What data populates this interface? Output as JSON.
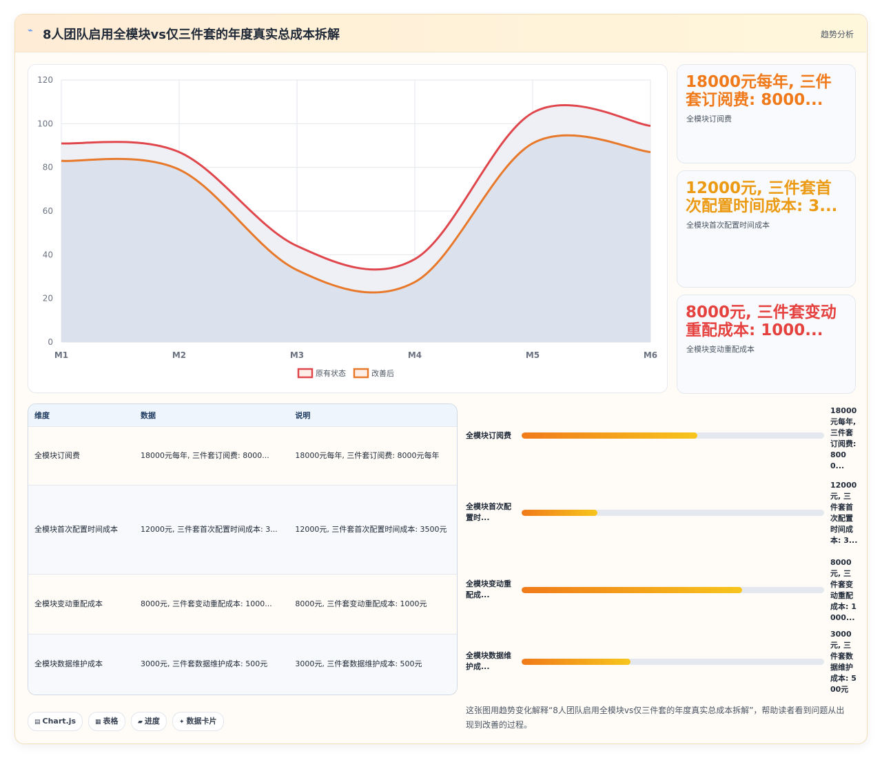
{
  "header": {
    "title": "8人团队启用全模块vs仅三件套的年度真实总成本拆解",
    "tag": "趋势分析"
  },
  "chart_data": {
    "type": "line",
    "categories": [
      "M1",
      "M2",
      "M3",
      "M4",
      "M5",
      "M6"
    ],
    "series": [
      {
        "name": "原有状态",
        "color": "#e0474c",
        "values": [
          91,
          87,
          44,
          38,
          105,
          99
        ]
      },
      {
        "name": "改善后",
        "color": "#e8782a",
        "values": [
          83,
          79,
          33,
          27.5,
          91,
          87
        ]
      }
    ],
    "ylim": [
      0,
      120
    ],
    "yticks": [
      0,
      20,
      40,
      60,
      80,
      100,
      120
    ],
    "grid": true,
    "legend": "bottom"
  },
  "cards": [
    {
      "title": "18000元每年, 三件套订阅费: 8000...",
      "subtitle": "全模块订阅费",
      "color": "#f07a1a"
    },
    {
      "title": "12000元, 三件套首次配置时间成本: 3...",
      "subtitle": "全模块首次配置时间成本",
      "color": "#eb9a12"
    },
    {
      "title": "8000元, 三件套变动重配成本: 1000...",
      "subtitle": "全模块变动重配成本",
      "color": "#e5413f"
    }
  ],
  "table": {
    "header": [
      "维度",
      "数据",
      "说明"
    ],
    "rows": [
      [
        "全模块订阅费",
        "18000元每年, 三件套订阅费: 8000...",
        "18000元每年, 三件套订阅费: 8000元每年"
      ],
      [
        "全模块首次配置时间成本",
        "12000元, 三件套首次配置时间成本: 3...",
        "12000元, 三件套首次配置时间成本: 3500元"
      ],
      [
        "全模块变动重配成本",
        "8000元, 三件套变动重配成本: 1000...",
        "8000元, 三件套变动重配成本: 1000元"
      ],
      [
        "全模块数据维护成本",
        "3000元, 三件套数据维护成本: 500元",
        "3000元, 三件套数据维护成本: 500元"
      ]
    ]
  },
  "progress": [
    {
      "label": "全模块订阅费",
      "value": 58,
      "text": "18000元每年, 三件套订阅费: 8000..."
    },
    {
      "label": "全模块首次配置时...",
      "value": 25,
      "text": "12000元, 三件套首次配置时间成本: 3..."
    },
    {
      "label": "全模块变动重配成...",
      "value": 73,
      "text": "8000元, 三件套变动重配成本: 1000..."
    },
    {
      "label": "全模块数据维护成...",
      "value": 36,
      "text": "3000元, 三件套数据维护成本: 500元"
    }
  ],
  "chips": [
    "Chart.js",
    "表格",
    "进度",
    "数据卡片"
  ],
  "note": "这张图用趋势变化解释“8人团队启用全模块vs仅三件套的年度真实总成本拆解”，帮助读者看到问题从出现到改善的过程。"
}
